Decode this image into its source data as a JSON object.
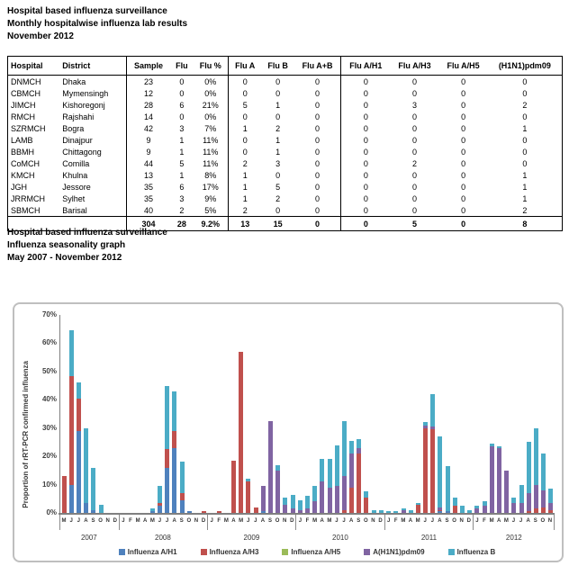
{
  "report": {
    "title_block_1": [
      "Hospital based influenza surveillance",
      "Monthly hospitalwise influenza lab results",
      "November 2012"
    ],
    "title_block_2": [
      "Hospital based influenza surveillance",
      "Influenza seasonality graph",
      "May 2007 - November 2012"
    ],
    "table": {
      "columns": [
        "Hospital",
        "District",
        "Sample",
        "Flu",
        "Flu %",
        "Flu A",
        "Flu B",
        "Flu A+B",
        "Flu A/H1",
        "Flu A/H3",
        "Flu A/H5",
        "(H1N1)pdm09"
      ],
      "rows": [
        [
          "DNMCH",
          "Dhaka",
          "23",
          "0",
          "0%",
          "0",
          "0",
          "0",
          "0",
          "0",
          "0",
          "0"
        ],
        [
          "CBMCH",
          "Mymensingh",
          "12",
          "0",
          "0%",
          "0",
          "0",
          "0",
          "0",
          "0",
          "0",
          "0"
        ],
        [
          "JIMCH",
          "Kishoregonj",
          "28",
          "6",
          "21%",
          "5",
          "1",
          "0",
          "0",
          "3",
          "0",
          "2"
        ],
        [
          "RMCH",
          "Rajshahi",
          "14",
          "0",
          "0%",
          "0",
          "0",
          "0",
          "0",
          "0",
          "0",
          "0"
        ],
        [
          "SZRMCH",
          "Bogra",
          "42",
          "3",
          "7%",
          "1",
          "2",
          "0",
          "0",
          "0",
          "0",
          "1"
        ],
        [
          "LAMB",
          "Dinajpur",
          "9",
          "1",
          "11%",
          "0",
          "1",
          "0",
          "0",
          "0",
          "0",
          "0"
        ],
        [
          "BBMH",
          "Chittagong",
          "9",
          "1",
          "11%",
          "0",
          "1",
          "0",
          "0",
          "0",
          "0",
          "0"
        ],
        [
          "CoMCH",
          "Comilla",
          "44",
          "5",
          "11%",
          "2",
          "3",
          "0",
          "0",
          "2",
          "0",
          "0"
        ],
        [
          "KMCH",
          "Khulna",
          "13",
          "1",
          "8%",
          "1",
          "0",
          "0",
          "0",
          "0",
          "0",
          "1"
        ],
        [
          "JGH",
          "Jessore",
          "35",
          "6",
          "17%",
          "1",
          "5",
          "0",
          "0",
          "0",
          "0",
          "1"
        ],
        [
          "JRRMCH",
          "Sylhet",
          "35",
          "3",
          "9%",
          "1",
          "2",
          "0",
          "0",
          "0",
          "0",
          "1"
        ],
        [
          "SBMCH",
          "Barisal",
          "40",
          "2",
          "5%",
          "2",
          "0",
          "0",
          "0",
          "0",
          "0",
          "2"
        ]
      ],
      "total_row": [
        "",
        "",
        "304",
        "28",
        "9.2%",
        "13",
        "15",
        "0",
        "0",
        "5",
        "0",
        "8"
      ]
    }
  },
  "chart_data": {
    "type": "bar",
    "subtype": "stacked",
    "title": "Influenza seasonality graph",
    "ylabel": "Proportion of rRT-PCR confirmed influenza",
    "xlabel": "",
    "ylim": [
      0,
      70
    ],
    "yticks": [
      "0%",
      "10%",
      "20%",
      "30%",
      "40%",
      "50%",
      "60%",
      "70%"
    ],
    "grid": false,
    "legend_position": "bottom",
    "series_names": [
      "Influenza A/H1",
      "Influenza A/H3",
      "Influenza A/H5",
      "A(H1N1)pdm09",
      "Influenza B"
    ],
    "series_colors": [
      "#4F81BD",
      "#C0504D",
      "#9BBB59",
      "#8064A2",
      "#4BACC6"
    ],
    "value_order_note": "each month = [A/H1, A/H3, A/H5, A(H1N1)pdm09, B] in percent",
    "groups": [
      {
        "year": "2007",
        "months": [
          "M",
          "J",
          "J",
          "A",
          "S",
          "O",
          "N",
          "D"
        ],
        "values": [
          [
            0,
            13,
            0,
            0,
            0
          ],
          [
            10,
            38.5,
            0,
            0,
            16
          ],
          [
            29,
            11.5,
            0,
            0,
            5.5
          ],
          [
            3.5,
            0,
            0,
            0,
            26.5
          ],
          [
            1,
            0,
            0,
            0,
            15
          ],
          [
            0,
            0,
            0,
            0,
            3
          ],
          [
            0,
            0,
            0,
            0,
            0
          ],
          [
            0,
            0,
            0,
            0,
            0
          ]
        ]
      },
      {
        "year": "2008",
        "months": [
          "J",
          "F",
          "M",
          "A",
          "M",
          "J",
          "J",
          "A",
          "S",
          "O",
          "N",
          "D"
        ],
        "values": [
          [
            0,
            0,
            0,
            0,
            0
          ],
          [
            0,
            0,
            0,
            0,
            0
          ],
          [
            0,
            0,
            0,
            0,
            0
          ],
          [
            0,
            0,
            0,
            0,
            0
          ],
          [
            0.5,
            0,
            0,
            0,
            1
          ],
          [
            2.5,
            1,
            0,
            0,
            6
          ],
          [
            16,
            6.5,
            0,
            0,
            22.5
          ],
          [
            23,
            6,
            0,
            0,
            14
          ],
          [
            4.5,
            2.5,
            0,
            0,
            11
          ],
          [
            0.5,
            0,
            0,
            0,
            0
          ],
          [
            0,
            0,
            0,
            0,
            0
          ],
          [
            0,
            0.5,
            0,
            0,
            0
          ]
        ]
      },
      {
        "year": "2009",
        "months": [
          "J",
          "F",
          "M",
          "A",
          "M",
          "J",
          "J",
          "A",
          "S",
          "O",
          "N",
          "D"
        ],
        "values": [
          [
            0,
            0,
            0,
            0,
            0
          ],
          [
            0,
            0.5,
            0,
            0,
            0
          ],
          [
            0,
            0,
            0,
            0,
            0
          ],
          [
            0,
            18.5,
            0,
            0,
            0
          ],
          [
            0,
            57,
            0,
            0,
            0
          ],
          [
            0,
            11,
            0,
            0,
            1
          ],
          [
            0,
            2,
            0,
            0,
            0
          ],
          [
            0.5,
            0,
            0,
            9,
            0
          ],
          [
            0,
            0,
            0,
            32.5,
            0
          ],
          [
            0,
            0,
            0,
            15,
            2
          ],
          [
            0,
            0,
            0,
            3,
            2.5
          ],
          [
            0,
            0,
            0,
            1.5,
            5
          ]
        ]
      },
      {
        "year": "2010",
        "months": [
          "J",
          "F",
          "M",
          "A",
          "M",
          "J",
          "J",
          "A",
          "S",
          "O",
          "N",
          "D"
        ],
        "values": [
          [
            0,
            0,
            0,
            1,
            3.5
          ],
          [
            0,
            0,
            0,
            1.5,
            4.5
          ],
          [
            0,
            0,
            0,
            4,
            5.5
          ],
          [
            0,
            0,
            0,
            11,
            8
          ],
          [
            0,
            0,
            0,
            9,
            10
          ],
          [
            0,
            0,
            0,
            9.5,
            14.5
          ],
          [
            0,
            1,
            0,
            12,
            19.5
          ],
          [
            0,
            9,
            0,
            12,
            4.5
          ],
          [
            0,
            21,
            0,
            2,
            3
          ],
          [
            0,
            5.5,
            0,
            0,
            2
          ],
          [
            0,
            0,
            0,
            0,
            1
          ],
          [
            0,
            0,
            0,
            0,
            1
          ]
        ]
      },
      {
        "year": "2011",
        "months": [
          "J",
          "F",
          "M",
          "A",
          "M",
          "J",
          "J",
          "A",
          "S",
          "O",
          "N",
          "D"
        ],
        "values": [
          [
            0,
            0,
            0,
            0,
            0.5
          ],
          [
            0,
            0,
            0,
            0,
            0.5
          ],
          [
            0,
            0,
            0,
            1,
            0.5
          ],
          [
            0,
            0,
            0,
            0,
            1
          ],
          [
            0,
            3,
            0,
            0,
            0.5
          ],
          [
            0,
            30,
            0,
            1,
            1
          ],
          [
            0,
            29.5,
            0,
            1,
            11.5
          ],
          [
            0.5,
            0.5,
            0,
            1,
            25
          ],
          [
            0.5,
            0,
            0,
            0,
            16
          ],
          [
            0,
            2.5,
            0,
            0,
            3
          ],
          [
            0,
            0,
            0,
            0,
            2.5
          ],
          [
            0,
            0,
            0,
            0,
            1
          ]
        ]
      },
      {
        "year": "2012",
        "months": [
          "J",
          "F",
          "M",
          "A",
          "M",
          "J",
          "J",
          "A",
          "S",
          "O",
          "N"
        ],
        "values": [
          [
            0,
            0,
            0,
            1.5,
            1
          ],
          [
            0,
            0,
            0,
            2.5,
            1.5
          ],
          [
            0,
            0,
            0,
            23.5,
            1
          ],
          [
            0,
            0,
            0,
            23,
            0.5
          ],
          [
            0,
            0,
            0,
            15,
            0
          ],
          [
            0,
            0,
            0,
            3.5,
            2
          ],
          [
            0,
            0,
            0,
            3.5,
            6.5
          ],
          [
            0,
            0.5,
            0,
            6.5,
            18
          ],
          [
            0,
            1.5,
            0,
            8.5,
            20
          ],
          [
            0,
            2,
            0,
            6,
            13
          ],
          [
            0,
            1,
            0,
            2.5,
            5
          ]
        ]
      }
    ]
  }
}
